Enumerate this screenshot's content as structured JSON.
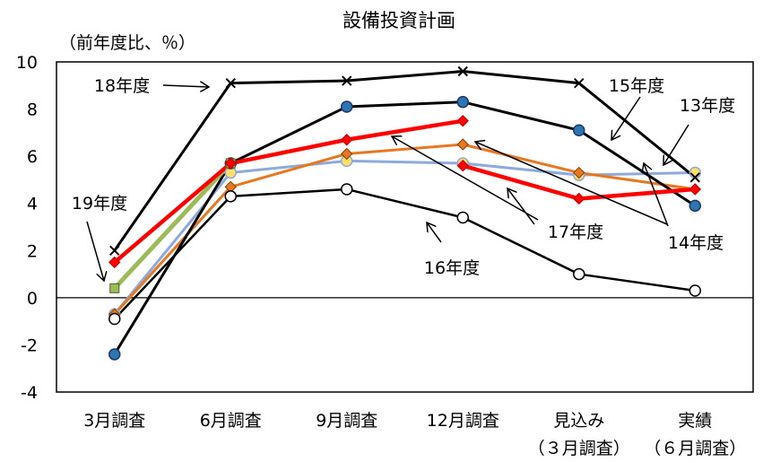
{
  "chart_data": {
    "type": "line",
    "title": "設備投資計画",
    "ylabel": "（前年度比、％）",
    "xlabel": "",
    "ylim": [
      -4,
      10
    ],
    "yticks": [
      "-4",
      "-2",
      "0",
      "2",
      "4",
      "6",
      "8",
      "10"
    ],
    "grid": false,
    "legend": "none (series labeled inline with arrows)",
    "categories": [
      "3月調査",
      "6月調査",
      "9月調査",
      "12月調査",
      "見込み",
      "実績"
    ],
    "category_sublabels": [
      "",
      "",
      "",
      "",
      "（３月調査）",
      "（６月調査）"
    ],
    "series": [
      {
        "name": "13年度",
        "color": "#8EA9DB",
        "marker": "circle-yellow",
        "values": [
          -0.7,
          5.3,
          5.8,
          5.7,
          5.2,
          5.3
        ]
      },
      {
        "name": "14年度",
        "color": "#E87722",
        "marker": "diamond",
        "values": [
          -0.7,
          4.7,
          6.1,
          6.5,
          5.3,
          4.6
        ]
      },
      {
        "name": "15年度",
        "color": "#000000",
        "marker": "circle-blue",
        "values": [
          -2.4,
          5.7,
          8.1,
          8.3,
          7.1,
          3.9
        ]
      },
      {
        "name": "16年度",
        "color": "#000000",
        "marker": "circle-white",
        "values": [
          -0.9,
          4.3,
          4.6,
          3.4,
          1.0,
          0.3
        ]
      },
      {
        "name": "17年度",
        "color": "#FF0000",
        "marker": "diamond-red",
        "values": [
          1.5,
          5.7,
          6.7,
          7.5,
          null,
          null
        ],
        "values_b": [
          null,
          null,
          null,
          5.6,
          4.2,
          4.6
        ]
      },
      {
        "name": "18年度",
        "color": "#000000",
        "marker": "x",
        "values": [
          2.0,
          9.1,
          9.2,
          9.6,
          9.1,
          5.1
        ]
      },
      {
        "name": "19年度",
        "color": "#9BBB59",
        "marker": "square",
        "values": [
          0.4,
          5.7,
          null,
          null,
          null,
          null
        ]
      }
    ],
    "annotations": [
      "18年度",
      "15年度",
      "13年度",
      "19年度",
      "17年度",
      "16年度",
      "14年度"
    ]
  }
}
